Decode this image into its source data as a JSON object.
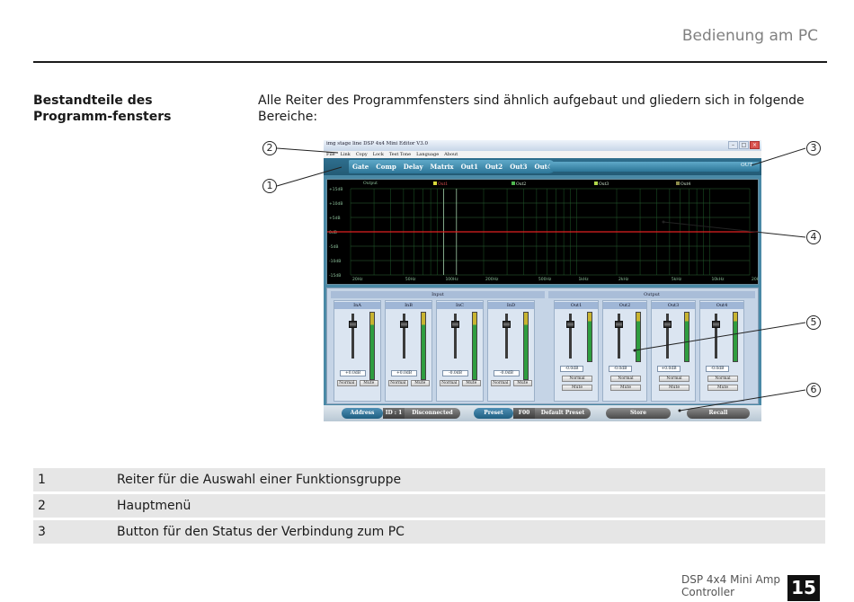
{
  "header": {
    "title": "Bedienung am PC"
  },
  "section": {
    "title": "Bestandteile des Programm-fensters",
    "intro": "Alle Reiter des Programmfensters sind ähnlich aufgebaut und gliedern sich in folgende Bereiche:"
  },
  "screenshot": {
    "window_title": "img stage line DSP 4x4 Mini Editor V3.0",
    "menu": [
      "File",
      "Link",
      "Copy",
      "Lock",
      "Test Tone",
      "Language",
      "About"
    ],
    "tabs": [
      "Gate",
      "Comp",
      "Delay",
      "Matrix",
      "Out1",
      "Out2",
      "Out3",
      "Out4"
    ],
    "connection_button": "OUT",
    "graph": {
      "channel_label": "Output",
      "legend": [
        {
          "label": "Out1",
          "color": "#d9d93a"
        },
        {
          "label": "Out2",
          "color": "#4fb84f"
        },
        {
          "label": "Out3",
          "color": "#b0d84a"
        },
        {
          "label": "Out4",
          "color": "#8c8c4a"
        }
      ],
      "y_labels": [
        "+15dB",
        "+10dB",
        "+5dB",
        "0dB",
        "-5dB",
        "-10dB",
        "-15dB"
      ],
      "x_labels": [
        "20Hz",
        "50Hz",
        "100Hz",
        "200Hz",
        "500Hz",
        "1kHz",
        "2kHz",
        "5kHz",
        "10kHz",
        "20kHz"
      ],
      "curve_color": "#e02020"
    },
    "input_group_label": "Input",
    "output_group_label": "Output",
    "inputs": [
      {
        "name": "InA",
        "gain": "+0.0dB",
        "btn1": "Normal",
        "btn2": "Mute"
      },
      {
        "name": "InB",
        "gain": "+0.0dB",
        "btn1": "Normal",
        "btn2": "Mute"
      },
      {
        "name": "InC",
        "gain": "-0.0dB",
        "btn1": "Normal",
        "btn2": "Mute"
      },
      {
        "name": "InD",
        "gain": "-0.0dB",
        "btn1": "Normal",
        "btn2": "Mute"
      }
    ],
    "outputs": [
      {
        "name": "Out1",
        "gain": "-0.0dB",
        "btn1": "Normal",
        "btn2": "Mute"
      },
      {
        "name": "Out2",
        "gain": "-0.0dB",
        "btn1": "Normal",
        "btn2": "Mute"
      },
      {
        "name": "Out3",
        "gain": "+0.0dB",
        "btn1": "Normal",
        "btn2": "Mute"
      },
      {
        "name": "Out4",
        "gain": "-0.0dB",
        "btn1": "Normal",
        "btn2": "Mute"
      }
    ],
    "bottom": {
      "address_label": "Address",
      "id_value": "ID : 1",
      "status": "Disconnected",
      "preset_label": "Preset",
      "preset_num": "F00",
      "preset_name": "Default Preset",
      "store": "Store",
      "recall": "Recall"
    }
  },
  "callouts": [
    "1",
    "2",
    "3",
    "4",
    "5",
    "6"
  ],
  "legend_rows": [
    {
      "num": "1",
      "text": "Reiter für die Auswahl einer Funktionsgruppe"
    },
    {
      "num": "2",
      "text": "Hauptmenü"
    },
    {
      "num": "3",
      "text": "Button für den Status der Verbindung zum PC"
    }
  ],
  "footer": {
    "line1": "DSP 4x4 Mini Amp",
    "line2": "Controller",
    "page": "15"
  }
}
